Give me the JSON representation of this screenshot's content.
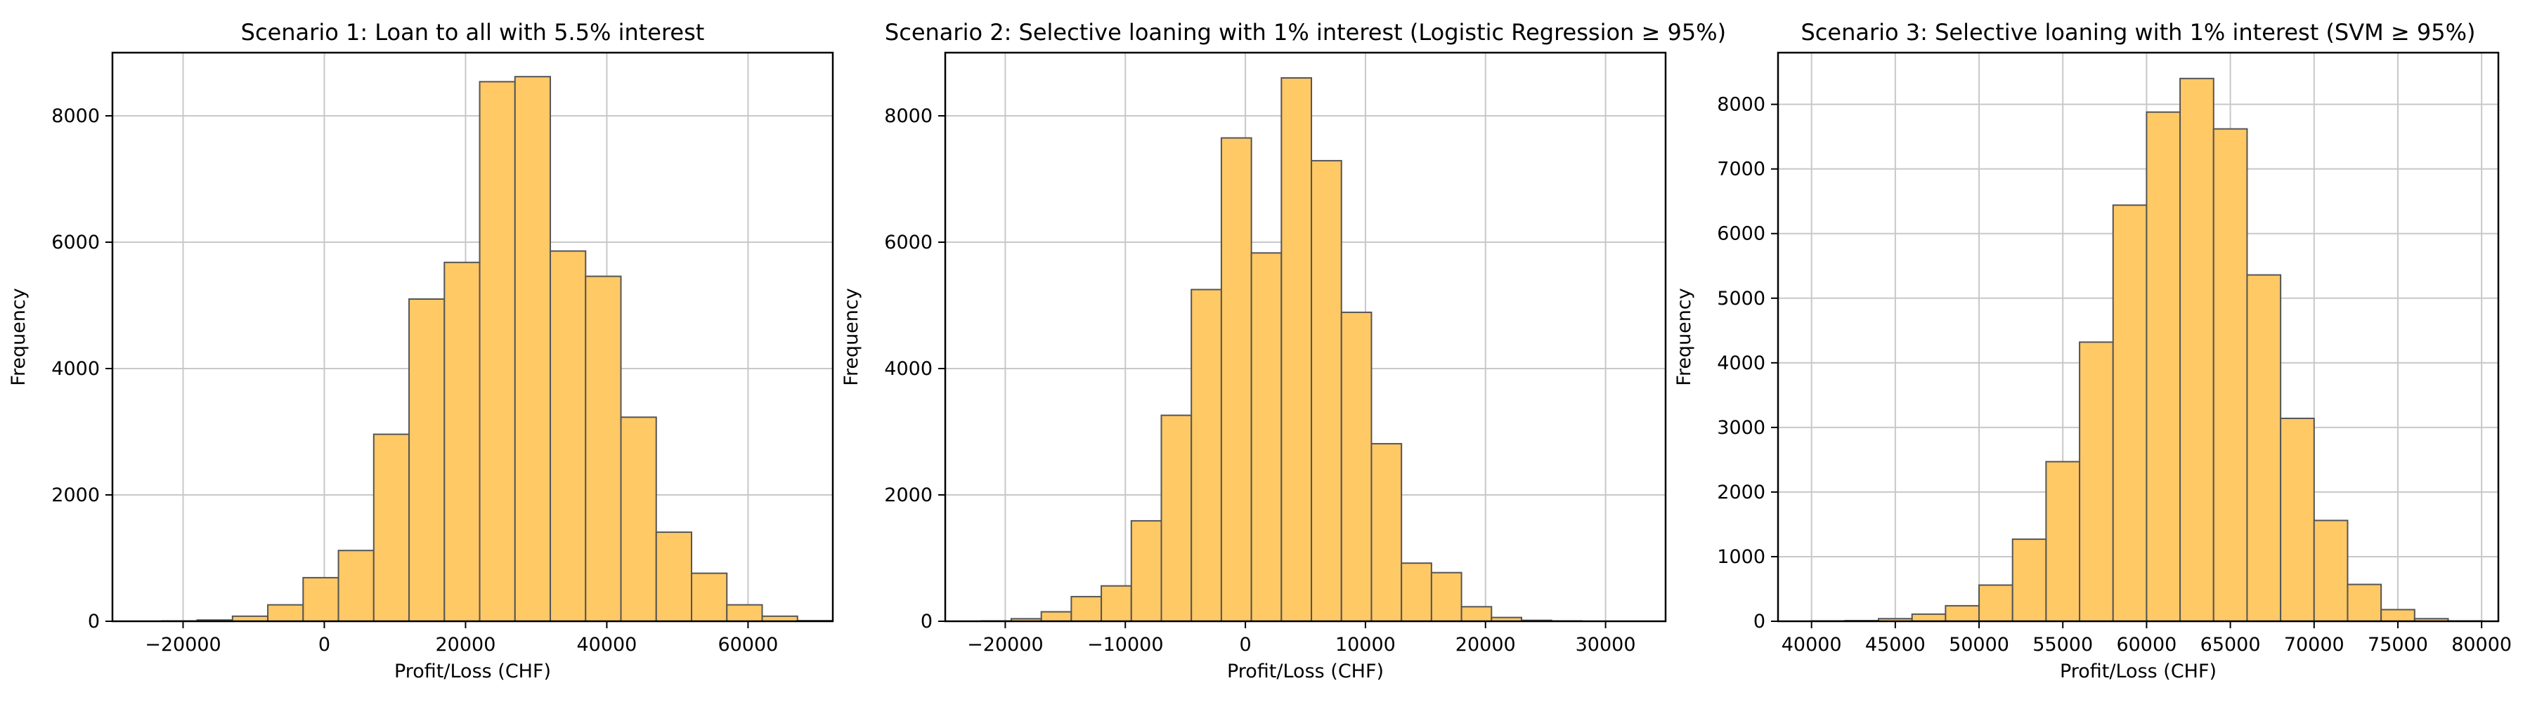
{
  "colors": {
    "bar_fill": "#ffc966",
    "bar_edge": "#555555",
    "grid": "#c8c8c8",
    "axes": "#000000"
  },
  "chart_data": [
    {
      "type": "bar",
      "title": "Scenario 1: Loan to all with 5.5% interest",
      "xlabel": "Profit/Loss (CHF)",
      "ylabel": "Frequency",
      "xlim": [
        -30000,
        72000
      ],
      "ylim": [
        0,
        9000
      ],
      "xticks": [
        -20000,
        0,
        20000,
        40000,
        60000
      ],
      "yticks": [
        0,
        2000,
        4000,
        6000,
        8000
      ],
      "grid": true,
      "bin_edges": [
        -23000,
        -18000,
        -13000,
        -8000,
        -3000,
        2000,
        7000,
        12000,
        17000,
        22000,
        27000,
        32000,
        37000,
        42000,
        47000,
        52000,
        57000,
        62000,
        67000,
        72000
      ],
      "values": [
        5,
        20,
        80,
        260,
        690,
        1120,
        2960,
        5100,
        5680,
        8540,
        8620,
        5860,
        5460,
        3230,
        1410,
        760,
        260,
        80,
        10
      ]
    },
    {
      "type": "bar",
      "title": "Scenario 2: Selective loaning with 1% interest (Logistic Regression ≥ 95%)",
      "xlabel": "Profit/Loss (CHF)",
      "ylabel": "Frequency",
      "xlim": [
        -25000,
        35000
      ],
      "ylim": [
        0,
        9000
      ],
      "xticks": [
        -20000,
        -10000,
        0,
        10000,
        20000,
        30000
      ],
      "yticks": [
        0,
        2000,
        4000,
        6000,
        8000
      ],
      "grid": true,
      "bin_edges": [
        -22000,
        -19500,
        -17000,
        -14500,
        -12000,
        -9500,
        -7000,
        -4500,
        -2000,
        500,
        3000,
        5500,
        8000,
        10500,
        13000,
        15500,
        18000,
        20500,
        23000,
        25500,
        28000
      ],
      "values": [
        5,
        40,
        150,
        390,
        560,
        1590,
        3260,
        5250,
        7650,
        5830,
        8600,
        7290,
        4890,
        2810,
        920,
        770,
        230,
        60,
        15,
        5
      ]
    },
    {
      "type": "bar",
      "title": "Scenario 3: Selective loaning with 1% interest (SVM ≥ 95%)",
      "xlabel": "Profit/Loss (CHF)",
      "ylabel": "Frequency",
      "xlim": [
        38000,
        81000
      ],
      "ylim": [
        0,
        8800
      ],
      "xticks": [
        40000,
        45000,
        50000,
        55000,
        60000,
        65000,
        70000,
        75000,
        80000
      ],
      "yticks": [
        0,
        1000,
        2000,
        3000,
        4000,
        5000,
        6000,
        7000,
        8000
      ],
      "grid": true,
      "bin_edges": [
        40000,
        42000,
        44000,
        46000,
        48000,
        50000,
        52000,
        54000,
        56000,
        58000,
        60000,
        62000,
        64000,
        66000,
        68000,
        70000,
        72000,
        74000,
        76000,
        78000,
        80000
      ],
      "values": [
        5,
        10,
        40,
        110,
        240,
        560,
        1270,
        2470,
        4320,
        6440,
        7880,
        8400,
        7620,
        5360,
        3140,
        1560,
        570,
        180,
        40,
        5
      ]
    }
  ]
}
